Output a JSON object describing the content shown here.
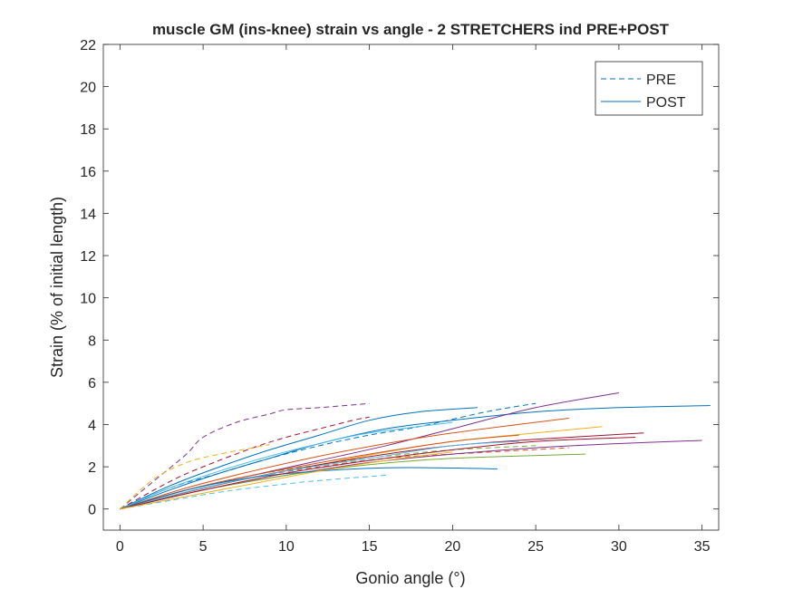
{
  "chart_data": {
    "type": "line",
    "title": "muscle GM (ins-knee) strain vs angle - 2 STRETCHERS ind PRE+POST",
    "xlabel": "Gonio angle (°)",
    "ylabel": "Strain (% of initial length)",
    "xlim": [
      -1,
      36
    ],
    "ylim": [
      -1,
      22
    ],
    "xticks": [
      0,
      5,
      10,
      15,
      20,
      25,
      30,
      35
    ],
    "yticks": [
      0,
      2,
      4,
      6,
      8,
      10,
      12,
      14,
      16,
      18,
      20,
      22
    ],
    "grid": false,
    "legend": {
      "placement": "top-right",
      "entries": [
        {
          "label": "PRE",
          "style": "dashed",
          "color": "#0072bd"
        },
        {
          "label": "POST",
          "style": "solid",
          "color": "#0072bd"
        }
      ]
    },
    "series": [
      {
        "group": "PRE",
        "color": "#7e2f8e",
        "x": [
          0,
          2,
          4,
          5,
          7,
          9,
          10,
          12,
          15
        ],
        "y": [
          0,
          1.3,
          2.6,
          3.4,
          4.1,
          4.5,
          4.7,
          4.8,
          5.0
        ]
      },
      {
        "group": "PRE",
        "color": "#a2142f",
        "x": [
          0,
          3,
          5,
          8,
          10,
          12,
          14,
          15
        ],
        "y": [
          0,
          1.3,
          2.0,
          2.9,
          3.4,
          3.8,
          4.2,
          4.35
        ]
      },
      {
        "group": "PRE",
        "color": "#edb120",
        "x": [
          0,
          2,
          4,
          6,
          8,
          9
        ],
        "y": [
          0,
          1.4,
          2.2,
          2.6,
          2.9,
          3.05
        ]
      },
      {
        "group": "PRE",
        "color": "#0072bd",
        "x": [
          0,
          3,
          6,
          9,
          12,
          15,
          18,
          22,
          25
        ],
        "y": [
          0,
          1.0,
          1.7,
          2.4,
          3.0,
          3.5,
          3.9,
          4.6,
          5.0
        ]
      },
      {
        "group": "PRE",
        "color": "#4dbeee",
        "x": [
          0,
          3,
          6,
          9,
          12,
          16
        ],
        "y": [
          0,
          0.4,
          0.8,
          1.1,
          1.35,
          1.6
        ]
      },
      {
        "group": "PRE",
        "color": "#77ac30",
        "x": [
          0,
          4,
          8,
          12,
          16,
          20,
          25
        ],
        "y": [
          0,
          0.9,
          1.6,
          2.1,
          2.5,
          2.8,
          3.0
        ]
      },
      {
        "group": "PRE",
        "color": "#d95319",
        "x": [
          0,
          4,
          8,
          12,
          16,
          20,
          27
        ],
        "y": [
          0,
          0.8,
          1.5,
          2.0,
          2.4,
          2.6,
          2.9
        ]
      },
      {
        "group": "POST",
        "color": "#0072bd",
        "x": [
          0,
          3,
          6,
          9,
          12,
          16,
          20,
          25,
          30,
          35.5
        ],
        "y": [
          0,
          0.9,
          1.7,
          2.4,
          3.1,
          3.8,
          4.2,
          4.6,
          4.8,
          4.9
        ]
      },
      {
        "group": "POST",
        "color": "#7e2f8e",
        "x": [
          0,
          4,
          8,
          12,
          16,
          20,
          25,
          30
        ],
        "y": [
          0,
          0.9,
          1.6,
          2.3,
          3.0,
          3.8,
          4.8,
          5.5
        ]
      },
      {
        "group": "POST",
        "color": "#0072bd",
        "x": [
          0,
          3,
          6,
          9,
          12,
          15,
          18,
          21.5
        ],
        "y": [
          0,
          1.1,
          2.0,
          2.8,
          3.5,
          4.2,
          4.6,
          4.8
        ]
      },
      {
        "group": "POST",
        "color": "#4dbeee",
        "x": [
          0,
          3,
          6,
          9,
          12,
          15,
          20
        ],
        "y": [
          0,
          1.0,
          1.8,
          2.5,
          3.1,
          3.6,
          4.1
        ]
      },
      {
        "group": "POST",
        "color": "#d95319",
        "x": [
          0,
          4,
          8,
          12,
          16,
          20,
          27
        ],
        "y": [
          0,
          1.0,
          1.8,
          2.5,
          3.1,
          3.6,
          4.3
        ]
      },
      {
        "group": "POST",
        "color": "#edb120",
        "x": [
          0,
          4,
          8,
          12,
          16,
          20,
          25,
          29
        ],
        "y": [
          0,
          0.8,
          1.5,
          2.1,
          2.7,
          3.2,
          3.6,
          3.9
        ]
      },
      {
        "group": "POST",
        "color": "#a2142f",
        "x": [
          0,
          4,
          8,
          12,
          16,
          20,
          25,
          31.5
        ],
        "y": [
          0,
          0.8,
          1.5,
          2.1,
          2.6,
          3.0,
          3.3,
          3.6
        ]
      },
      {
        "group": "POST",
        "color": "#7e2f8e",
        "x": [
          0,
          5,
          10,
          15,
          20,
          25,
          30,
          35
        ],
        "y": [
          0,
          0.9,
          1.6,
          2.2,
          2.6,
          2.9,
          3.1,
          3.25
        ]
      },
      {
        "group": "POST",
        "color": "#77ac30",
        "x": [
          0,
          5,
          10,
          15,
          20,
          28
        ],
        "y": [
          0,
          0.9,
          1.6,
          2.1,
          2.4,
          2.6
        ]
      },
      {
        "group": "POST",
        "color": "#4dbeee",
        "x": [
          0,
          5,
          10,
          15,
          20,
          24
        ],
        "y": [
          0,
          1.0,
          1.8,
          2.4,
          3.0,
          3.2
        ]
      },
      {
        "group": "POST",
        "color": "#d95319",
        "x": [
          0,
          5,
          10,
          15,
          20,
          24
        ],
        "y": [
          0,
          1.1,
          1.9,
          2.6,
          3.2,
          3.5
        ]
      },
      {
        "group": "POST",
        "color": "#0072bd",
        "x": [
          0,
          4,
          8,
          12,
          16,
          19,
          22.7
        ],
        "y": [
          0,
          0.9,
          1.5,
          1.8,
          1.95,
          1.95,
          1.9
        ]
      },
      {
        "group": "POST",
        "color": "#a2142f",
        "x": [
          0,
          5,
          10,
          15,
          20,
          25,
          31
        ],
        "y": [
          0,
          0.9,
          1.7,
          2.3,
          2.8,
          3.2,
          3.4
        ]
      },
      {
        "group": "POST",
        "color": "#edb120",
        "x": [
          0,
          4,
          8,
          12,
          16,
          20
        ],
        "y": [
          0,
          0.6,
          1.2,
          1.8,
          2.3,
          2.7
        ]
      }
    ]
  }
}
